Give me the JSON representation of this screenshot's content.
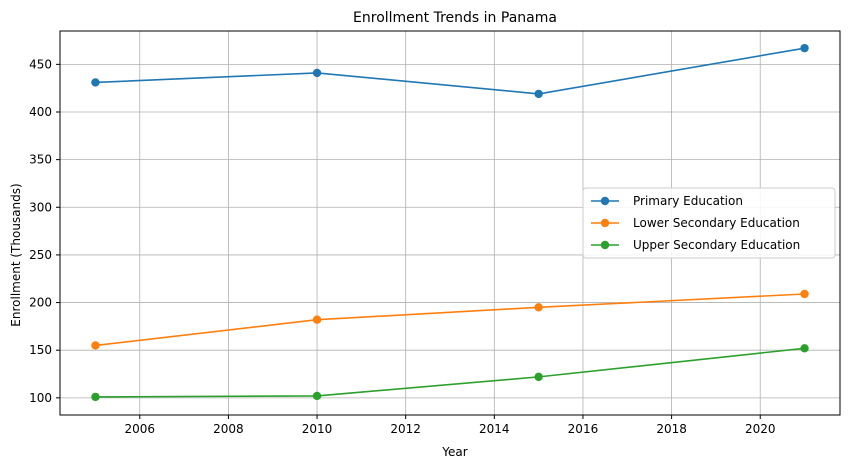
{
  "chart_data": {
    "type": "line",
    "title": "Enrollment Trends in Panama",
    "xlabel": "Year",
    "ylabel": "Enrollment (Thousands)",
    "x": [
      2005,
      2010,
      2015,
      2021
    ],
    "xlim": [
      2004.2,
      2021.8
    ],
    "ylim": [
      82,
      485
    ],
    "xticks": [
      2006,
      2008,
      2010,
      2012,
      2014,
      2016,
      2018,
      2020
    ],
    "yticks": [
      100,
      150,
      200,
      250,
      300,
      350,
      400,
      450
    ],
    "grid": true,
    "legend_position": "center-right",
    "series": [
      {
        "name": "Primary Education",
        "color": "#1f77b4",
        "values": [
          431,
          441,
          419,
          467
        ]
      },
      {
        "name": "Lower Secondary Education",
        "color": "#ff7f0e",
        "values": [
          155,
          182,
          195,
          209
        ]
      },
      {
        "name": "Upper Secondary Education",
        "color": "#2ca02c",
        "values": [
          101,
          102,
          122,
          152
        ]
      }
    ]
  }
}
